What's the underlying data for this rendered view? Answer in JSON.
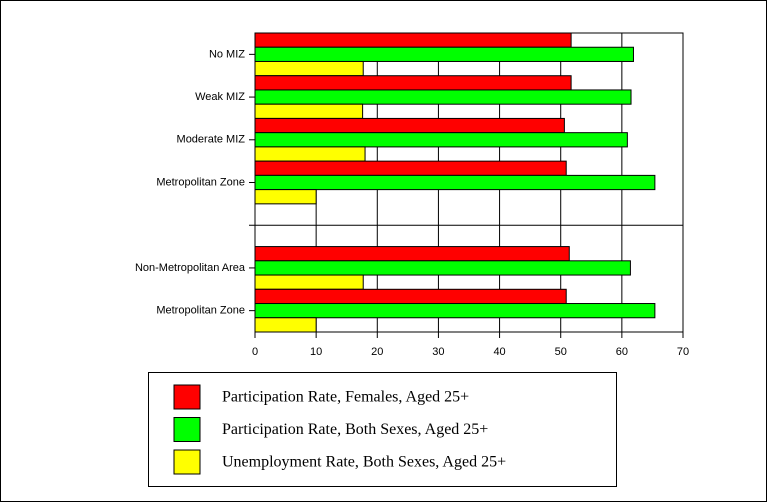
{
  "chart_data": {
    "type": "bar",
    "orientation": "horizontal",
    "categories": [
      "No MIZ",
      "Weak MIZ",
      "Moderate MIZ",
      "Metropolitan Zone",
      null,
      "Non-Metropolitan Area",
      "Metropolitan Zone"
    ],
    "series": [
      {
        "name": "Participation Rate, Females, Aged 25+",
        "color": "#ff0000",
        "values": [
          51.7,
          51.7,
          50.6,
          50.9,
          null,
          51.4,
          50.9
        ]
      },
      {
        "name": "Participation Rate, Both Sexes, Aged 25+",
        "color": "#00ff00",
        "values": [
          61.9,
          61.5,
          60.9,
          65.4,
          null,
          61.4,
          65.4
        ]
      },
      {
        "name": "Unemployment Rate, Both Sexes, Aged 25+",
        "color": "#ffff00",
        "values": [
          17.7,
          17.6,
          18.0,
          10.0,
          null,
          17.7,
          10.0
        ]
      }
    ],
    "xlim": [
      0,
      70
    ],
    "xticks": [
      0,
      10,
      20,
      30,
      40,
      50,
      60,
      70
    ],
    "grid": true,
    "legend": "bottom"
  }
}
